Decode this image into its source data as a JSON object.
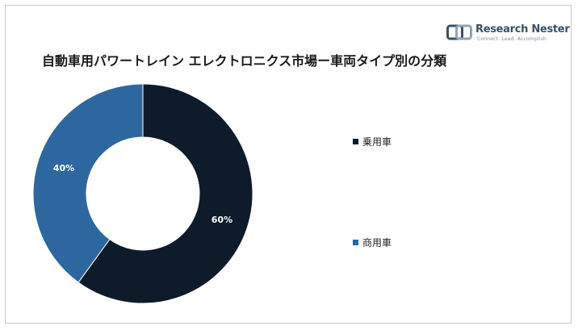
{
  "title": "自動車用パワートレイン エレクトロニクス市場ー車両タイプ別の分類",
  "logo": {
    "name": "Research Nester",
    "tagline": "Connect. Lead. Accomplish"
  },
  "chart_data": {
    "type": "pie",
    "variant": "donut",
    "title": "自動車用パワートレイン エレクトロニクス市場ー車両タイプ別の分類",
    "legend_position": "right",
    "series": [
      {
        "name": "乗用車",
        "value": 60,
        "label": "60%",
        "color": "#0d1b2a"
      },
      {
        "name": "商用車",
        "value": 40,
        "label": "40%",
        "color": "#2e67a0"
      }
    ]
  }
}
